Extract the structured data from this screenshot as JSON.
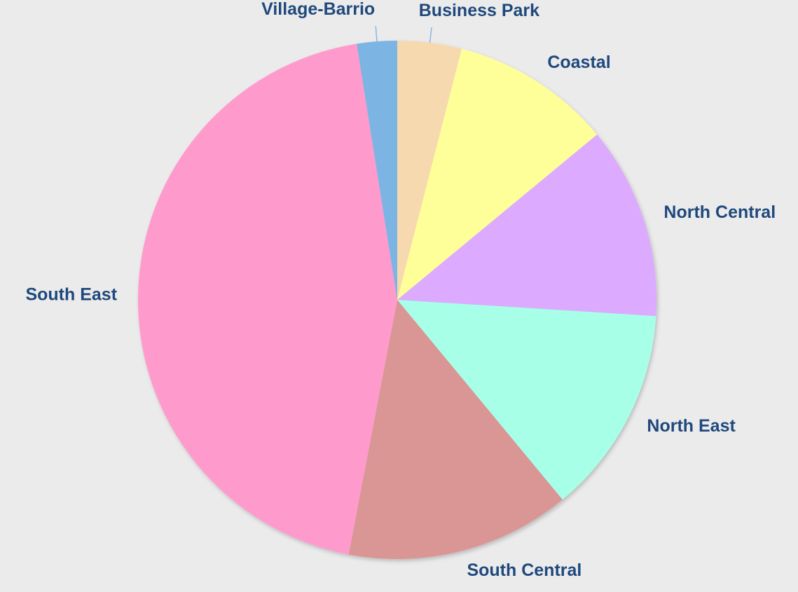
{
  "chart_data": {
    "type": "pie",
    "categories": [
      "Business Park",
      "Coastal",
      "North Central",
      "North East",
      "South Central",
      "South East",
      "Village-Barrio"
    ],
    "values": [
      4,
      10,
      12,
      13,
      14,
      44.5,
      2.5
    ],
    "colors": [
      "#f7d9b0",
      "#ffff99",
      "#dcaaff",
      "#a8ffe8",
      "#d99694",
      "#ff9bcc",
      "#7cb5e4"
    ]
  }
}
